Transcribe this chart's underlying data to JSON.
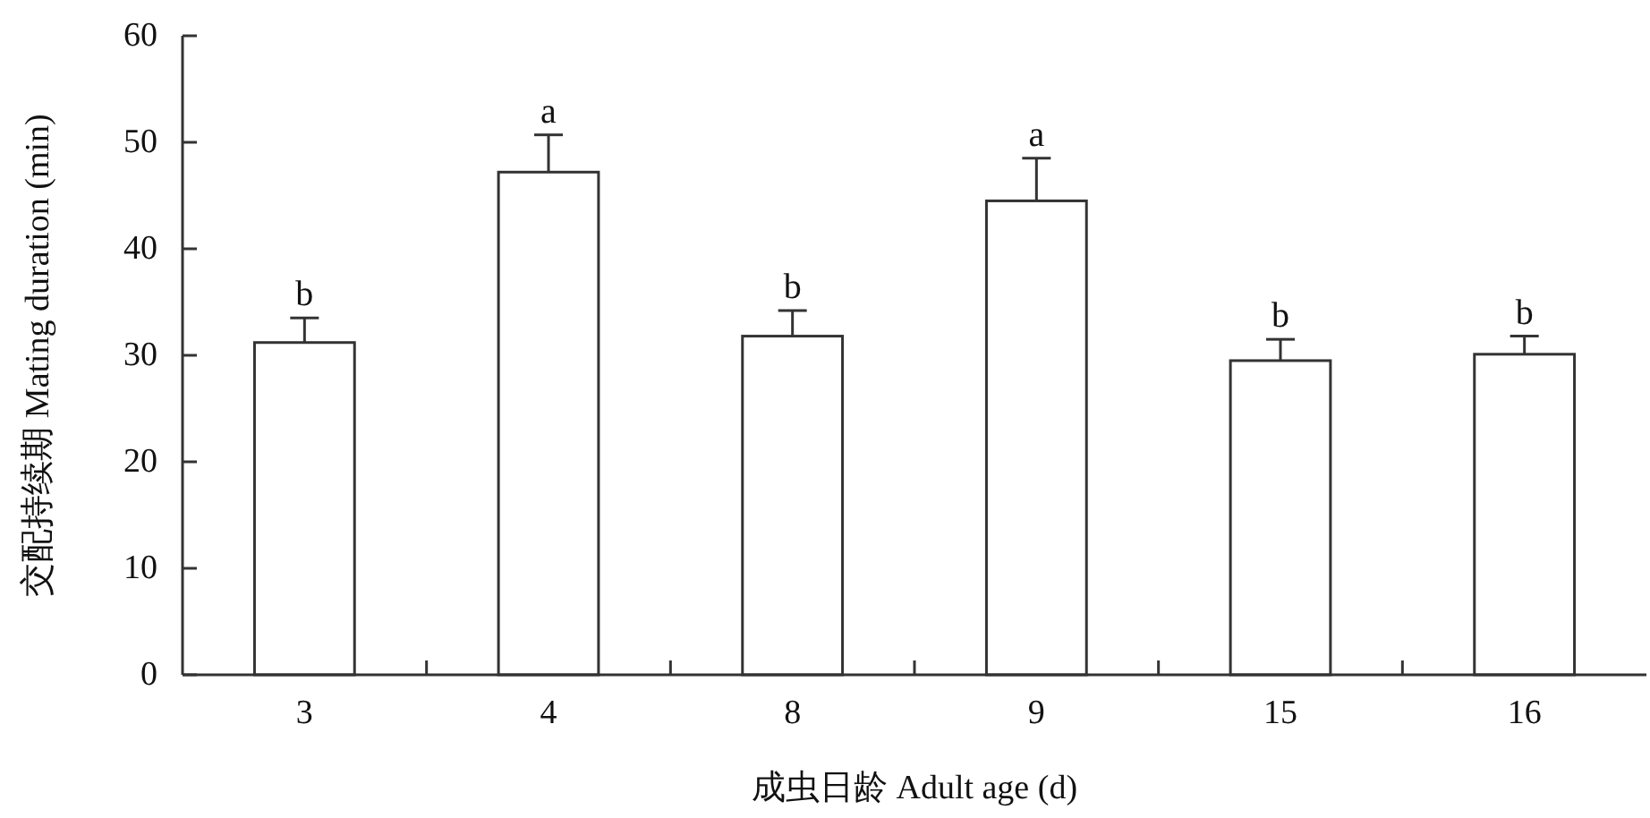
{
  "chart_data": {
    "type": "bar",
    "xlabel": "成虫日龄 Adult age (d)",
    "ylabel": "交配持续期 Mating duration (min)",
    "categories": [
      "3",
      "4",
      "8",
      "9",
      "15",
      "16"
    ],
    "values": [
      31.2,
      47.2,
      31.8,
      44.5,
      29.5,
      30.1
    ],
    "errors": [
      2.3,
      3.5,
      2.4,
      4.0,
      2.0,
      1.7
    ],
    "color": "#ffffff",
    "ylim": [
      0,
      60
    ],
    "yticks": [
      0,
      10,
      20,
      30,
      40,
      50,
      60
    ],
    "grid": false,
    "annotations": [
      {
        "text": "b",
        "x": "3",
        "y": 33.5
      },
      {
        "text": "a",
        "x": "4",
        "y": 50.7
      },
      {
        "text": "b",
        "x": "8",
        "y": 34.2
      },
      {
        "text": "a",
        "x": "9",
        "y": 48.5
      },
      {
        "text": "b",
        "x": "15",
        "y": 31.5
      },
      {
        "text": "b",
        "x": "16",
        "y": 31.8
      }
    ]
  }
}
